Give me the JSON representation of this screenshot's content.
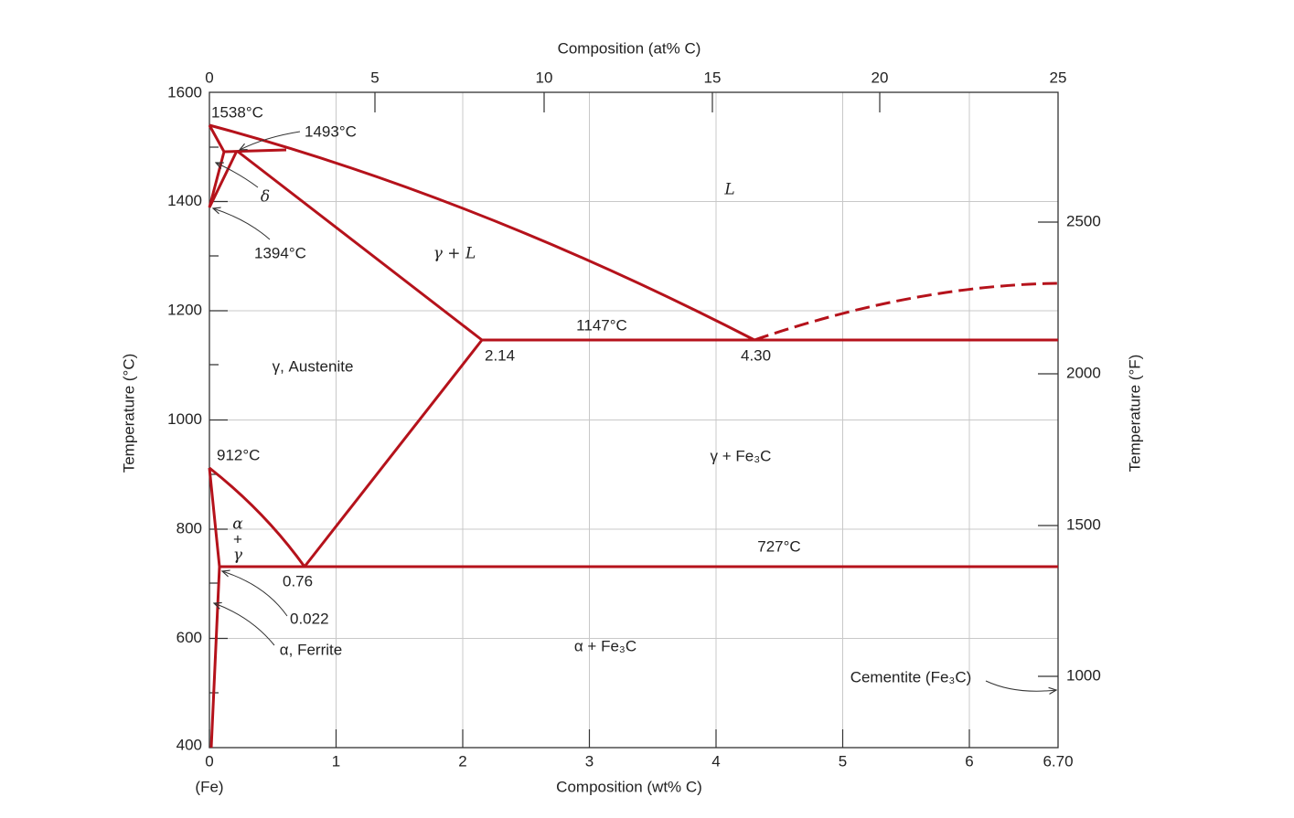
{
  "top_axis": {
    "title": "Composition (at% C)",
    "ticks": [
      "0",
      "5",
      "10",
      "15",
      "20",
      "25"
    ]
  },
  "bottom_axis": {
    "title": "Composition (wt% C)",
    "ticks": [
      "0",
      "1",
      "2",
      "3",
      "4",
      "5",
      "6",
      "6.70"
    ],
    "origin_note": "(Fe)"
  },
  "left_axis": {
    "title": "Temperature (°C)",
    "ticks": [
      "400",
      "600",
      "800",
      "1000",
      "1200",
      "1400",
      "1600"
    ]
  },
  "right_axis": {
    "title": "Temperature (°F)",
    "ticks": [
      "1000",
      "1500",
      "2000",
      "2500"
    ]
  },
  "regions": {
    "liquid": "L",
    "gamma_liquid": "γ + L",
    "austenite": "γ, Austenite",
    "gamma_cementite": "γ + Fe₃C",
    "alpha_cementite": "α + Fe₃C",
    "alpha": "α",
    "plus": "+",
    "gamma": "γ",
    "delta": "δ",
    "ferrite": "α, Ferrite",
    "cementite": "Cementite (Fe₃C)"
  },
  "annotations": {
    "t1538": "1538°C",
    "t1493": "1493°C",
    "t1394": "1394°C",
    "t1147": "1147°C",
    "t912": "912°C",
    "t727": "727°C",
    "c214": "2.14",
    "c430": "4.30",
    "c076": "0.76",
    "c0022": "0.022"
  }
}
